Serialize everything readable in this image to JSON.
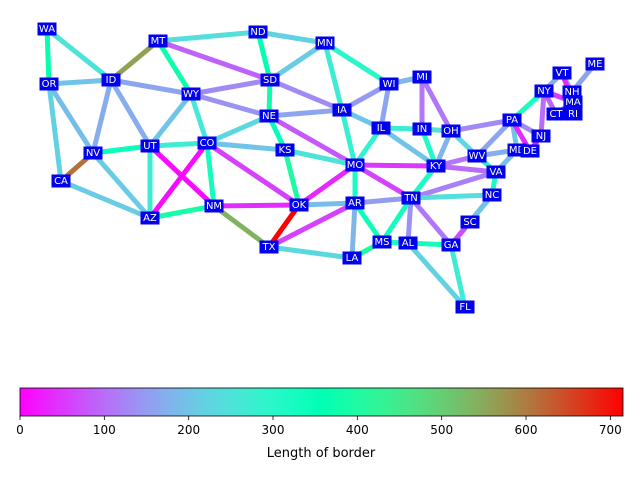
{
  "colorbar": {
    "label": "Length of border",
    "ticks": [
      0,
      100,
      200,
      300,
      400,
      500,
      600,
      700
    ],
    "min": 0,
    "max": 715,
    "colormap": "rainbow"
  },
  "nodes": [
    {
      "id": "WA"
    },
    {
      "id": "OR"
    },
    {
      "id": "CA"
    },
    {
      "id": "ID"
    },
    {
      "id": "NV"
    },
    {
      "id": "MT"
    },
    {
      "id": "WY"
    },
    {
      "id": "UT"
    },
    {
      "id": "AZ"
    },
    {
      "id": "CO"
    },
    {
      "id": "NM"
    },
    {
      "id": "ND"
    },
    {
      "id": "SD"
    },
    {
      "id": "NE"
    },
    {
      "id": "KS"
    },
    {
      "id": "OK"
    },
    {
      "id": "TX"
    },
    {
      "id": "MN"
    },
    {
      "id": "IA"
    },
    {
      "id": "MO"
    },
    {
      "id": "AR"
    },
    {
      "id": "LA"
    },
    {
      "id": "WI"
    },
    {
      "id": "IL"
    },
    {
      "id": "MS"
    },
    {
      "id": "MI"
    },
    {
      "id": "IN"
    },
    {
      "id": "KY"
    },
    {
      "id": "TN"
    },
    {
      "id": "AL"
    },
    {
      "id": "OH"
    },
    {
      "id": "WV"
    },
    {
      "id": "VA"
    },
    {
      "id": "NC"
    },
    {
      "id": "SC"
    },
    {
      "id": "GA"
    },
    {
      "id": "FL"
    },
    {
      "id": "PA"
    },
    {
      "id": "MD"
    },
    {
      "id": "DE"
    },
    {
      "id": "NJ"
    },
    {
      "id": "NY"
    },
    {
      "id": "CT"
    },
    {
      "id": "RI"
    },
    {
      "id": "MA"
    },
    {
      "id": "VT"
    },
    {
      "id": "NH"
    },
    {
      "id": "ME"
    }
  ],
  "chart_data": {
    "type": "network",
    "edges": [
      {
        "a": "WA",
        "b": "OR",
        "length": 370
      },
      {
        "a": "WA",
        "b": "ID",
        "length": 250
      },
      {
        "a": "OR",
        "b": "ID",
        "length": 200
      },
      {
        "a": "OR",
        "b": "NV",
        "length": 190
      },
      {
        "a": "OR",
        "b": "CA",
        "length": 220
      },
      {
        "a": "CA",
        "b": "NV",
        "length": 610
      },
      {
        "a": "CA",
        "b": "AZ",
        "length": 210
      },
      {
        "a": "ID",
        "b": "MT",
        "length": 560
      },
      {
        "a": "ID",
        "b": "WY",
        "length": 160
      },
      {
        "a": "ID",
        "b": "NV",
        "length": 170
      },
      {
        "a": "ID",
        "b": "UT",
        "length": 170
      },
      {
        "a": "NV",
        "b": "UT",
        "length": 340
      },
      {
        "a": "NV",
        "b": "AZ",
        "length": 210
      },
      {
        "a": "MT",
        "b": "ND",
        "length": 240
      },
      {
        "a": "MT",
        "b": "SD",
        "length": 90
      },
      {
        "a": "MT",
        "b": "WY",
        "length": 380
      },
      {
        "a": "WY",
        "b": "SD",
        "length": 130
      },
      {
        "a": "WY",
        "b": "NE",
        "length": 140
      },
      {
        "a": "WY",
        "b": "CO",
        "length": 260
      },
      {
        "a": "WY",
        "b": "UT",
        "length": 200
      },
      {
        "a": "UT",
        "b": "CO",
        "length": 270
      },
      {
        "a": "UT",
        "b": "AZ",
        "length": 270
      },
      {
        "a": "UT",
        "b": "NM",
        "length": 10
      },
      {
        "a": "AZ",
        "b": "NM",
        "length": 390
      },
      {
        "a": "AZ",
        "b": "CO",
        "length": 10
      },
      {
        "a": "CO",
        "b": "NE",
        "length": 230
      },
      {
        "a": "CO",
        "b": "KS",
        "length": 200
      },
      {
        "a": "CO",
        "b": "OK",
        "length": 60
      },
      {
        "a": "CO",
        "b": "NM",
        "length": 330
      },
      {
        "a": "NM",
        "b": "OK",
        "length": 40
      },
      {
        "a": "NM",
        "b": "TX",
        "length": 540
      },
      {
        "a": "ND",
        "b": "SD",
        "length": 360
      },
      {
        "a": "ND",
        "b": "MN",
        "length": 220
      },
      {
        "a": "SD",
        "b": "MN",
        "length": 210
      },
      {
        "a": "SD",
        "b": "IA",
        "length": 130
      },
      {
        "a": "SD",
        "b": "NE",
        "length": 380
      },
      {
        "a": "NE",
        "b": "IA",
        "length": 160
      },
      {
        "a": "NE",
        "b": "MO",
        "length": 80
      },
      {
        "a": "NE",
        "b": "KS",
        "length": 350
      },
      {
        "a": "KS",
        "b": "MO",
        "length": 250
      },
      {
        "a": "KS",
        "b": "OK",
        "length": 400
      },
      {
        "a": "OK",
        "b": "MO",
        "length": 35
      },
      {
        "a": "OK",
        "b": "AR",
        "length": 190
      },
      {
        "a": "OK",
        "b": "TX",
        "length": 715
      },
      {
        "a": "TX",
        "b": "AR",
        "length": 60
      },
      {
        "a": "TX",
        "b": "LA",
        "length": 230
      },
      {
        "a": "MN",
        "b": "WI",
        "length": 300
      },
      {
        "a": "MN",
        "b": "IA",
        "length": 270
      },
      {
        "a": "IA",
        "b": "WI",
        "length": 150
      },
      {
        "a": "IA",
        "b": "IL",
        "length": 200
      },
      {
        "a": "IA",
        "b": "MO",
        "length": 280
      },
      {
        "a": "MO",
        "b": "IL",
        "length": 290
      },
      {
        "a": "MO",
        "b": "KY",
        "length": 50
      },
      {
        "a": "MO",
        "b": "TN",
        "length": 60
      },
      {
        "a": "MO",
        "b": "AR",
        "length": 320
      },
      {
        "a": "AR",
        "b": "TN",
        "length": 150
      },
      {
        "a": "AR",
        "b": "MS",
        "length": 340
      },
      {
        "a": "AR",
        "b": "LA",
        "length": 180
      },
      {
        "a": "LA",
        "b": "MS",
        "length": 400
      },
      {
        "a": "WI",
        "b": "IL",
        "length": 160
      },
      {
        "a": "WI",
        "b": "MI",
        "length": 180
      },
      {
        "a": "IL",
        "b": "IN",
        "length": 270
      },
      {
        "a": "IL",
        "b": "KY",
        "length": 200
      },
      {
        "a": "MI",
        "b": "IN",
        "length": 110
      },
      {
        "a": "MI",
        "b": "OH",
        "length": 110
      },
      {
        "a": "IN",
        "b": "OH",
        "length": 240
      },
      {
        "a": "IN",
        "b": "KY",
        "length": 310
      },
      {
        "a": "OH",
        "b": "KY",
        "length": 180
      },
      {
        "a": "OH",
        "b": "WV",
        "length": 230
      },
      {
        "a": "OH",
        "b": "PA",
        "length": 130
      },
      {
        "a": "KY",
        "b": "WV",
        "length": 110
      },
      {
        "a": "KY",
        "b": "VA",
        "length": 100
      },
      {
        "a": "KY",
        "b": "TN",
        "length": 320
      },
      {
        "a": "TN",
        "b": "VA",
        "length": 120
      },
      {
        "a": "TN",
        "b": "NC",
        "length": 240
      },
      {
        "a": "TN",
        "b": "GA",
        "length": 110
      },
      {
        "a": "TN",
        "b": "AL",
        "length": 140
      },
      {
        "a": "TN",
        "b": "MS",
        "length": 330
      },
      {
        "a": "MS",
        "b": "AL",
        "length": 320
      },
      {
        "a": "AL",
        "b": "GA",
        "length": 330
      },
      {
        "a": "AL",
        "b": "FL",
        "length": 220
      },
      {
        "a": "GA",
        "b": "FL",
        "length": 270
      },
      {
        "a": "GA",
        "b": "SC",
        "length": 200
      },
      {
        "a": "GA",
        "b": "NC",
        "length": 70
      },
      {
        "a": "NC",
        "b": "SC",
        "length": 200
      },
      {
        "a": "NC",
        "b": "VA",
        "length": 320
      },
      {
        "a": "VA",
        "b": "WV",
        "length": 280
      },
      {
        "a": "VA",
        "b": "MD",
        "length": 190
      },
      {
        "a": "WV",
        "b": "MD",
        "length": 170
      },
      {
        "a": "WV",
        "b": "PA",
        "length": 160
      },
      {
        "a": "PA",
        "b": "MD",
        "length": 200
      },
      {
        "a": "PA",
        "b": "DE",
        "length": 40
      },
      {
        "a": "PA",
        "b": "NJ",
        "length": 130
      },
      {
        "a": "PA",
        "b": "NY",
        "length": 320
      },
      {
        "a": "MD",
        "b": "DE",
        "length": 120
      },
      {
        "a": "DE",
        "b": "NJ",
        "length": 30
      },
      {
        "a": "NJ",
        "b": "NY",
        "length": 100
      },
      {
        "a": "NY",
        "b": "CT",
        "length": 90
      },
      {
        "a": "NY",
        "b": "MA",
        "length": 50
      },
      {
        "a": "NY",
        "b": "VT",
        "length": 170
      },
      {
        "a": "CT",
        "b": "MA",
        "length": 90
      },
      {
        "a": "CT",
        "b": "RI",
        "length": 50
      },
      {
        "a": "RI",
        "b": "MA",
        "length": 60
      },
      {
        "a": "VT",
        "b": "NH",
        "length": 170
      },
      {
        "a": "VT",
        "b": "MA",
        "length": 40
      },
      {
        "a": "NH",
        "b": "MA",
        "length": 100
      },
      {
        "a": "NH",
        "b": "ME",
        "length": 160
      }
    ]
  }
}
